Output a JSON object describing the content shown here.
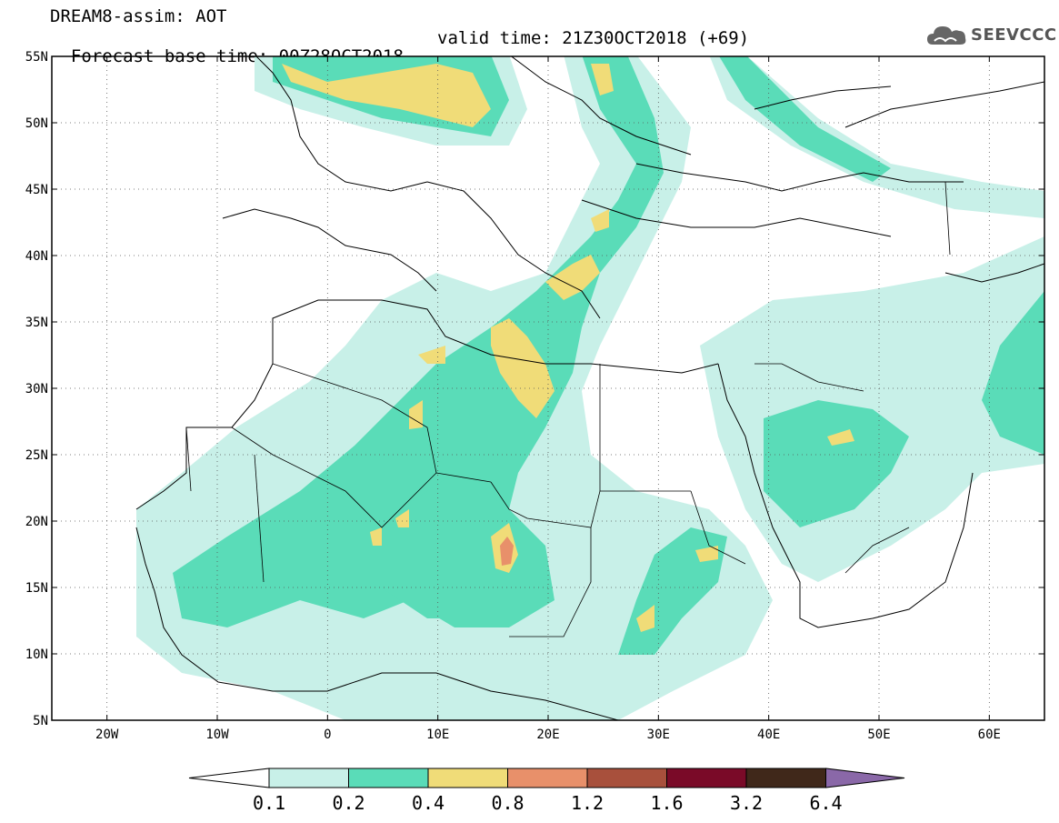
{
  "header": {
    "title": "DREAM8-assim: AOT",
    "base_time": "Forecast base time: 00Z28OCT2018",
    "valid_time": "valid time: 21Z30OCT2018 (+69)"
  },
  "logo": {
    "text": "SEEVCCC",
    "icon": "cloud-icon"
  },
  "map": {
    "lat_labels": [
      "55N",
      "50N",
      "45N",
      "40N",
      "35N",
      "30N",
      "25N",
      "20N",
      "15N",
      "10N",
      "5N"
    ],
    "lon_labels": [
      "20W",
      "10W",
      "0",
      "10E",
      "20E",
      "30E",
      "40E",
      "50E",
      "60E"
    ],
    "lat_range": [
      5,
      55
    ],
    "lon_range": [
      -25,
      65
    ],
    "grid": "dotted"
  },
  "colorbar": {
    "levels": [
      "0.1",
      "0.2",
      "0.4",
      "0.8",
      "1.2",
      "1.6",
      "3.2",
      "6.4"
    ],
    "colors": [
      "#ffffff",
      "#c8f0e8",
      "#5adcb8",
      "#f0dc78",
      "#e8906a",
      "#a8503c",
      "#7a0a28",
      "#40281a",
      "#8a68a8"
    ]
  }
}
